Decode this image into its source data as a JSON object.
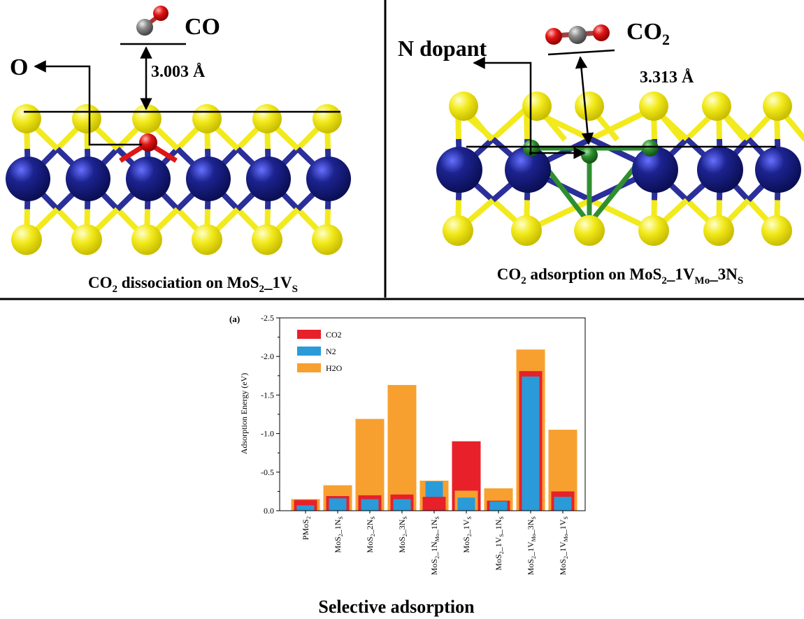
{
  "panel_left": {
    "co_label": "CO",
    "o_label": "O",
    "distance": "3.003 Å",
    "caption": {
      "pre": "CO",
      "sub1": "2",
      "mid": " dissociation on MoS",
      "sub2": "2",
      "post": "_1V",
      "sub3": "S"
    }
  },
  "panel_right": {
    "co2_label": {
      "pre": "CO",
      "sub": "2"
    },
    "n_dopant_label": "N dopant",
    "distance": "3.313 Å",
    "caption": {
      "pre": "CO",
      "sub1": "2",
      "mid": " adsorption on MoS",
      "sub2": "2",
      "mid2": "_1V",
      "sub3": "Mo",
      "mid3": "_3N",
      "sub4": "S"
    }
  },
  "colors": {
    "sulfur": "#f2ea1c",
    "molybdenum": "#1a1f8c",
    "bond_mo_s": "#2a2f9a",
    "nitrogen": "#2f8f2f",
    "oxygen": "#e01515",
    "carbon": "#808080",
    "co2_bar": "#e8202a",
    "n2_bar": "#2a9bd8",
    "h2o_bar": "#f7a030"
  },
  "chart_data": {
    "type": "bar",
    "panel_label": "(a)",
    "ylabel": "Adsorption Energy (eV)",
    "xlabel": "Selective adsorption",
    "ylim": [
      0.0,
      -2.5
    ],
    "yticks": [
      "0.0",
      "-0.5",
      "-1.0",
      "-1.5",
      "-2.0",
      "-2.5"
    ],
    "legend_placement": "top-left",
    "categories": [
      {
        "base": "PMoS",
        "sub": "2",
        "tail": []
      },
      {
        "base": "MoS",
        "sub": "2",
        "tail": [
          [
            "_1N",
            "S"
          ]
        ]
      },
      {
        "base": "MoS",
        "sub": "2",
        "tail": [
          [
            "_2N",
            "S"
          ]
        ]
      },
      {
        "base": "MoS",
        "sub": "2",
        "tail": [
          [
            "_3N",
            "S"
          ]
        ]
      },
      {
        "base": "MoS",
        "sub": "2",
        "tail": [
          [
            "_1N",
            "Mo"
          ],
          [
            "_1N",
            "S"
          ]
        ]
      },
      {
        "base": "MoS",
        "sub": "2",
        "tail": [
          [
            "_1V",
            "S"
          ]
        ]
      },
      {
        "base": "MoS",
        "sub": "2",
        "tail": [
          [
            "_1V",
            "S"
          ],
          [
            "_1N",
            "S"
          ]
        ]
      },
      {
        "base": "MoS",
        "sub": "2",
        "tail": [
          [
            "_1V",
            "Mo"
          ],
          [
            "_3N",
            "S"
          ]
        ]
      },
      {
        "base": "MoS",
        "sub": "2",
        "tail": [
          [
            "_1V",
            "Mo"
          ],
          [
            "_1V",
            "S"
          ]
        ]
      }
    ],
    "series": [
      {
        "name": "CO2",
        "values": [
          -0.14,
          -0.19,
          -0.2,
          -0.21,
          -0.18,
          -0.9,
          -0.13,
          -1.81,
          -0.25
        ]
      },
      {
        "name": "N2",
        "values": [
          -0.07,
          -0.16,
          -0.15,
          -0.15,
          -0.38,
          -0.17,
          -0.12,
          -1.74,
          -0.18
        ]
      },
      {
        "name": "H2O",
        "values": [
          -0.15,
          -0.33,
          -1.19,
          -1.63,
          -0.39,
          -0.26,
          -0.29,
          -2.09,
          -1.05
        ]
      }
    ]
  }
}
